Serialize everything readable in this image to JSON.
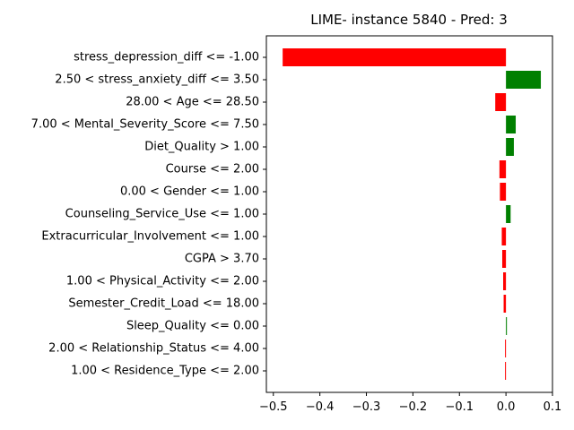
{
  "chart_data": {
    "type": "bar",
    "orientation": "horizontal",
    "title": "LIME- instance 5840 - Pred: 3",
    "xlabel": "",
    "ylabel": "",
    "xlim": [
      -0.515,
      0.1
    ],
    "xticks": [
      -0.5,
      -0.4,
      -0.3,
      -0.2,
      -0.1,
      0.0,
      0.1
    ],
    "xtick_labels": [
      "−0.5",
      "−0.4",
      "−0.3",
      "−0.2",
      "−0.1",
      "0.0",
      "0.1"
    ],
    "grid": false,
    "legend": false,
    "colors": {
      "positive": "#008000",
      "negative": "#ff0000"
    },
    "categories": [
      "stress_depression_diff <= -1.00",
      "2.50 < stress_anxiety_diff <= 3.50",
      "28.00 < Age <= 28.50",
      "7.00 < Mental_Severity_Score <= 7.50",
      "Diet_Quality > 1.00",
      "Course <= 2.00",
      "0.00 < Gender <= 1.00",
      "Counseling_Service_Use <= 1.00",
      "Extracurricular_Involvement <= 1.00",
      "CGPA > 3.70",
      "1.00 < Physical_Activity <= 2.00",
      "Semester_Credit_Load <= 18.00",
      "Sleep_Quality <= 0.00",
      "2.00 < Relationship_Status <= 4.00",
      "1.00 < Residence_Type <= 2.00"
    ],
    "values": [
      -0.48,
      0.075,
      -0.023,
      0.021,
      0.017,
      -0.014,
      -0.013,
      0.01,
      -0.009,
      -0.008,
      -0.006,
      -0.005,
      0.002,
      -0.002,
      -0.002
    ]
  }
}
